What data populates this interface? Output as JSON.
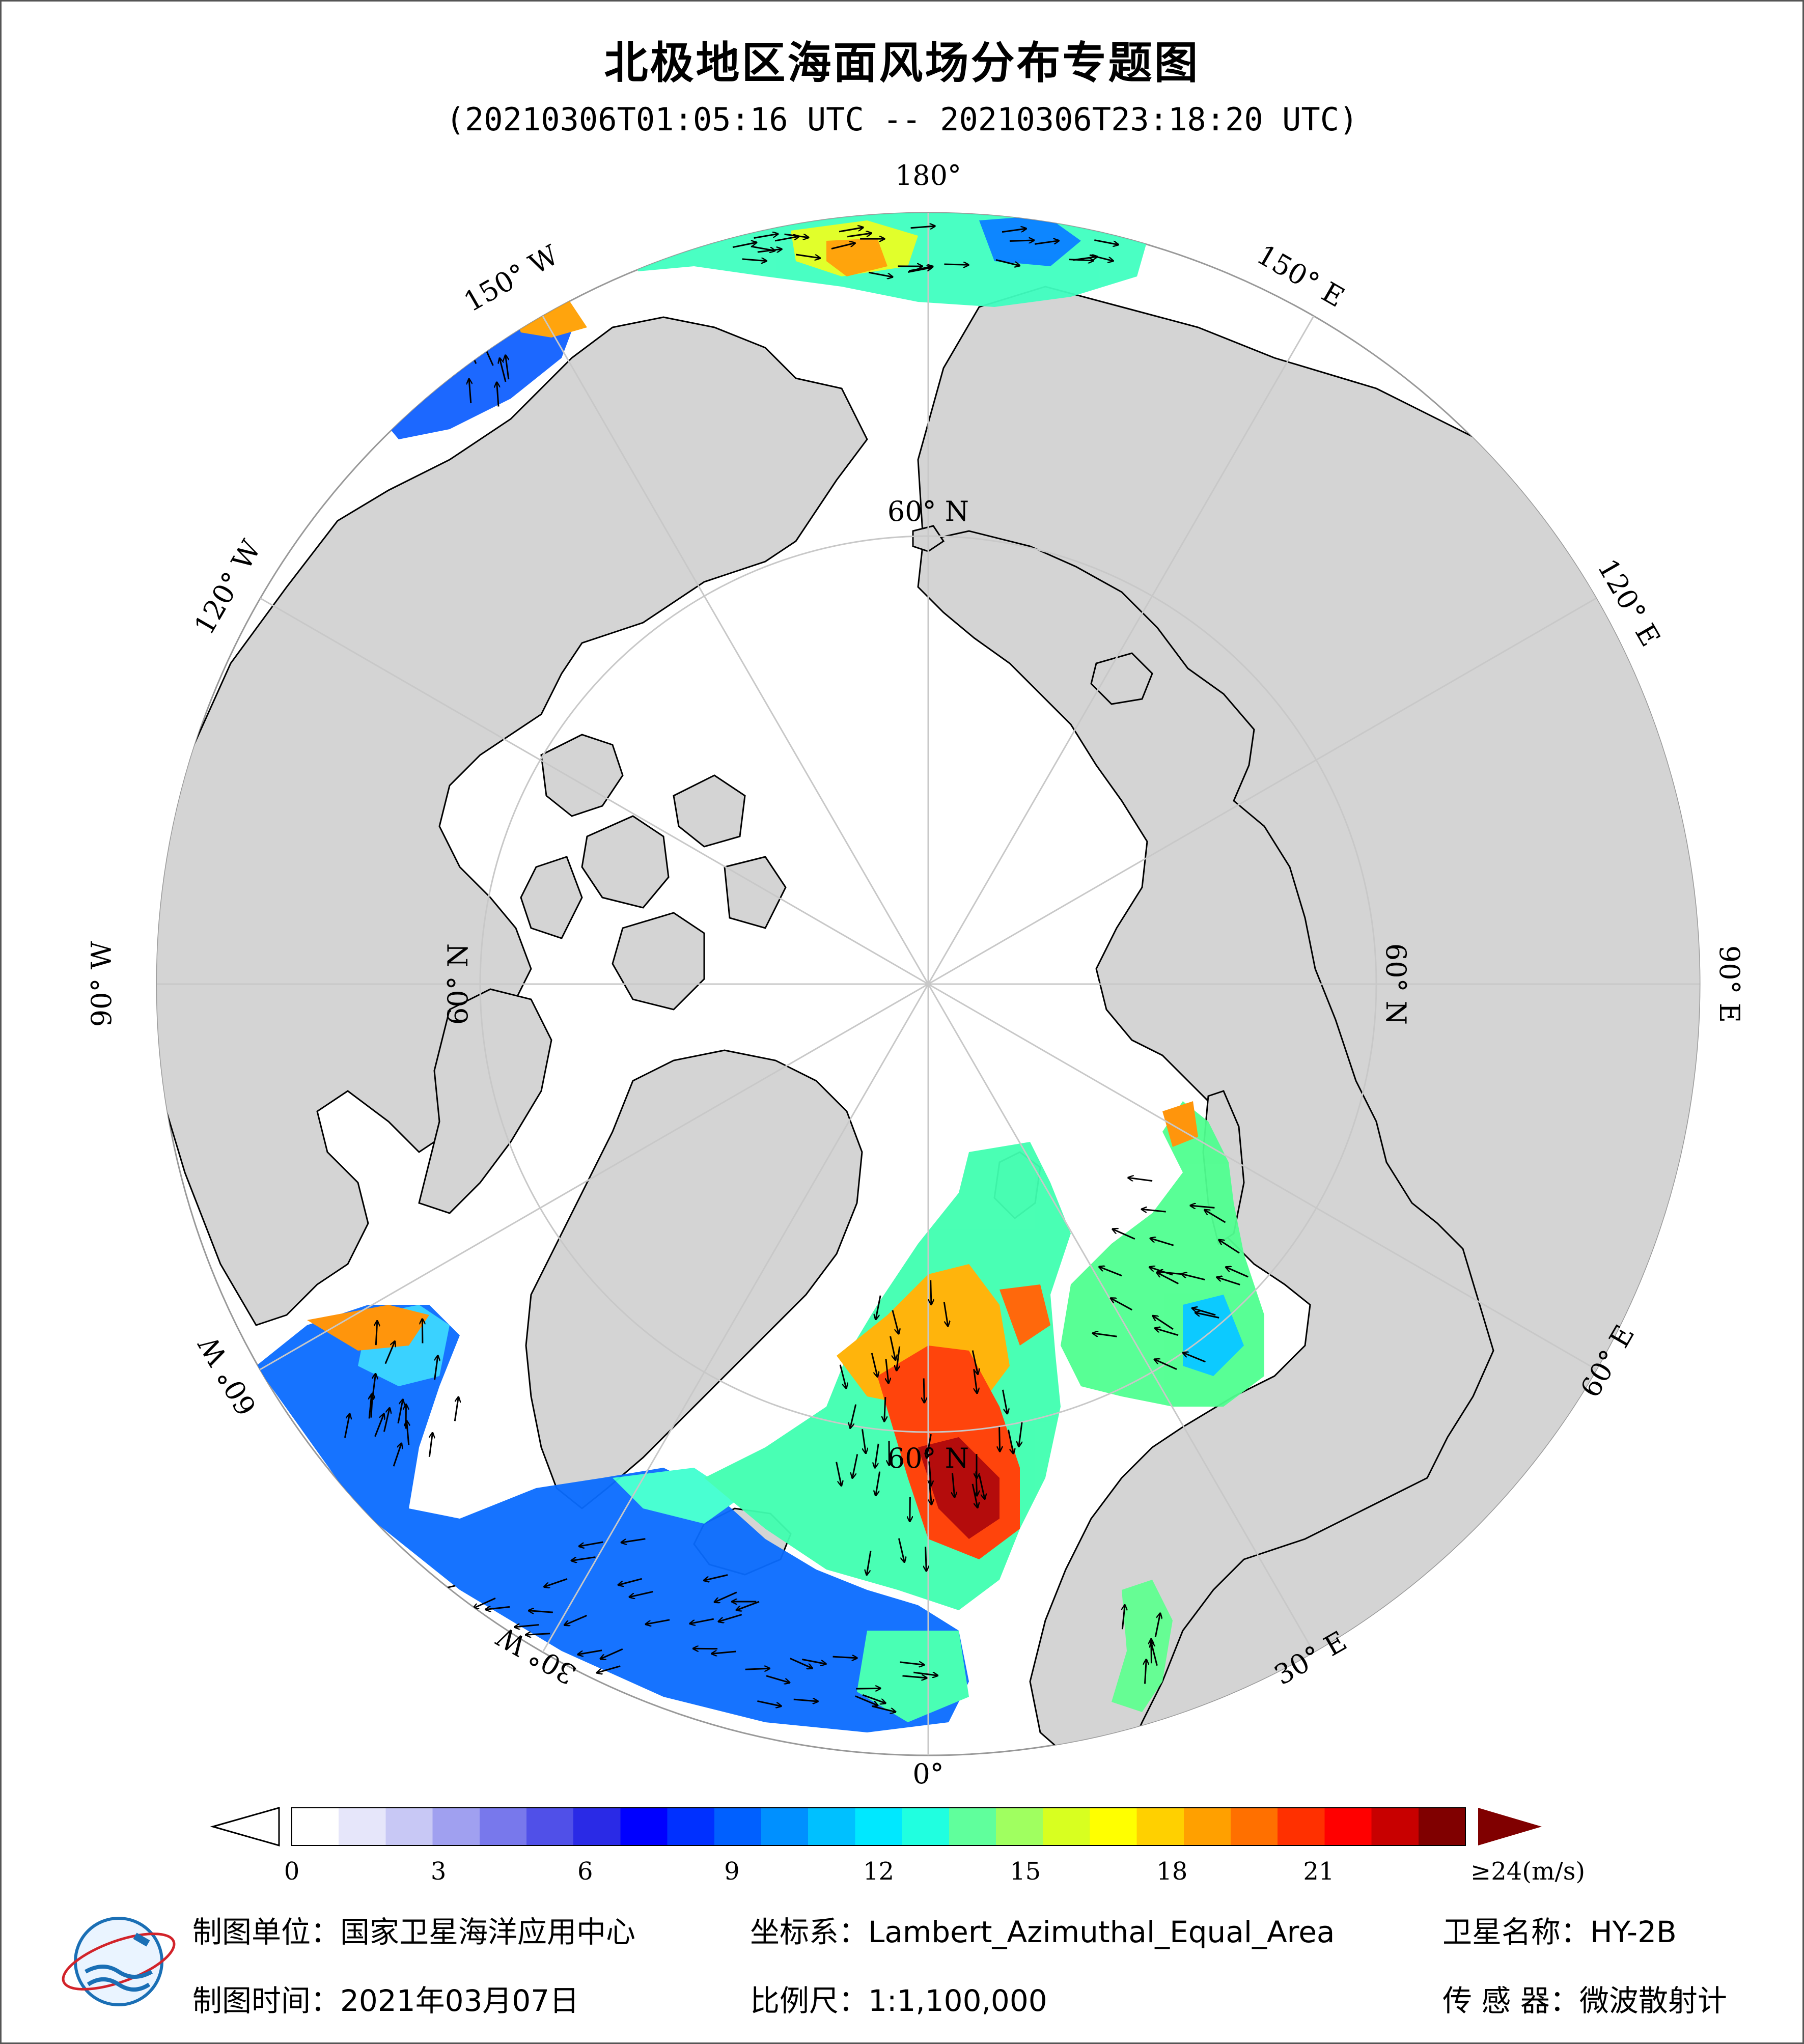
{
  "title": "北极地区海面风场分布专题图",
  "subtitle": "(20210306T01:05:16 UTC -- 20210306T23:18:20 UTC)",
  "map": {
    "projection": "Lambert Azimuthal Equal Area (North Polar)",
    "longitude_labels": {
      "lon_180": "180°",
      "lon_150e": "150° E",
      "lon_120e": "120° E",
      "lon_90e": "90° E",
      "lon_60e": "60° E",
      "lon_30e": "30° E",
      "lon_0": "0°",
      "lon_30w": "30° W",
      "lon_60w": "60° W",
      "lon_90w": "90° W",
      "lon_120w": "120° W",
      "lon_150w": "150° W"
    },
    "latitude_labels": {
      "lat_60_top": "60° N",
      "lat_60_right": "60° N",
      "lat_60_bottom": "60° N",
      "lat_60_left": "60° N"
    },
    "colors": {
      "land": "#d4d4d4",
      "ocean_no_data": "#ffffff",
      "coast": "#000000",
      "graticule": "#c8c8c8"
    }
  },
  "colorbar": {
    "unit_label": "≥24(m/s)",
    "ticks": [
      "0",
      "3",
      "6",
      "9",
      "12",
      "15",
      "18",
      "21"
    ],
    "tick_values": [
      0,
      3,
      6,
      9,
      12,
      15,
      18,
      21
    ],
    "min": 0,
    "max": 24,
    "colors": [
      "#ffffff",
      "#e6e6fa",
      "#c8c8f5",
      "#a0a0f0",
      "#7878ec",
      "#5050e8",
      "#2a2ae6",
      "#0000ff",
      "#0030ff",
      "#0060ff",
      "#0090ff",
      "#00c0ff",
      "#00e8ff",
      "#20ffe0",
      "#60ff9c",
      "#a0ff60",
      "#d8ff20",
      "#ffff00",
      "#ffd000",
      "#ffa000",
      "#ff7000",
      "#ff3000",
      "#ff0000",
      "#c80000",
      "#800000"
    ],
    "over_color": "#800000"
  },
  "footer": {
    "producer": "制图单位：国家卫星海洋应用中心",
    "date": "制图时间：2021年03月07日",
    "crs": "坐标系：Lambert_Azimuthal_Equal_Area",
    "scale": "比例尺：1:1,100,000",
    "satellite": "卫星名称：HY-2B",
    "sensor": "传 感 器：微波散射计"
  }
}
